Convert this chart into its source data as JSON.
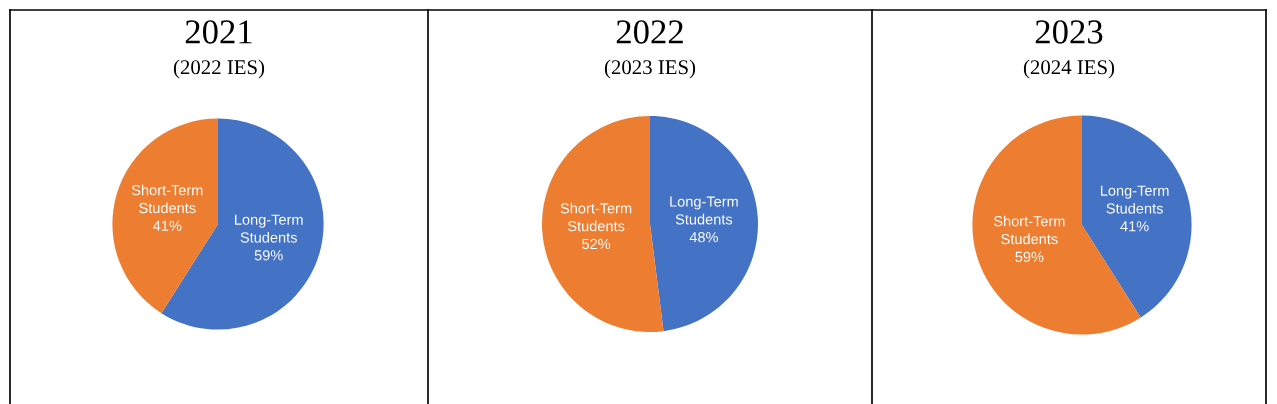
{
  "chart_data": [
    {
      "type": "pie",
      "title": "2021",
      "subtitle": "(2022 IES)",
      "categories": [
        "Long-Term Students",
        "Short-Term Students"
      ],
      "values": [
        59,
        41
      ],
      "colors": [
        "#4472c4",
        "#ed7d31"
      ],
      "value_labels": [
        "59%",
        "41%"
      ]
    },
    {
      "type": "pie",
      "title": "2022",
      "subtitle": "(2023 IES)",
      "categories": [
        "Long-Term Students",
        "Short-Term Students"
      ],
      "values": [
        48,
        52
      ],
      "colors": [
        "#4472c4",
        "#ed7d31"
      ],
      "value_labels": [
        "48%",
        "52%"
      ]
    },
    {
      "type": "pie",
      "title": "2023",
      "subtitle": "(2024 IES)",
      "categories": [
        "Long-Term Students",
        "Short-Term Students"
      ],
      "values": [
        41,
        59
      ],
      "colors": [
        "#4472c4",
        "#ed7d31"
      ],
      "value_labels": [
        "41%",
        "59%"
      ]
    }
  ]
}
